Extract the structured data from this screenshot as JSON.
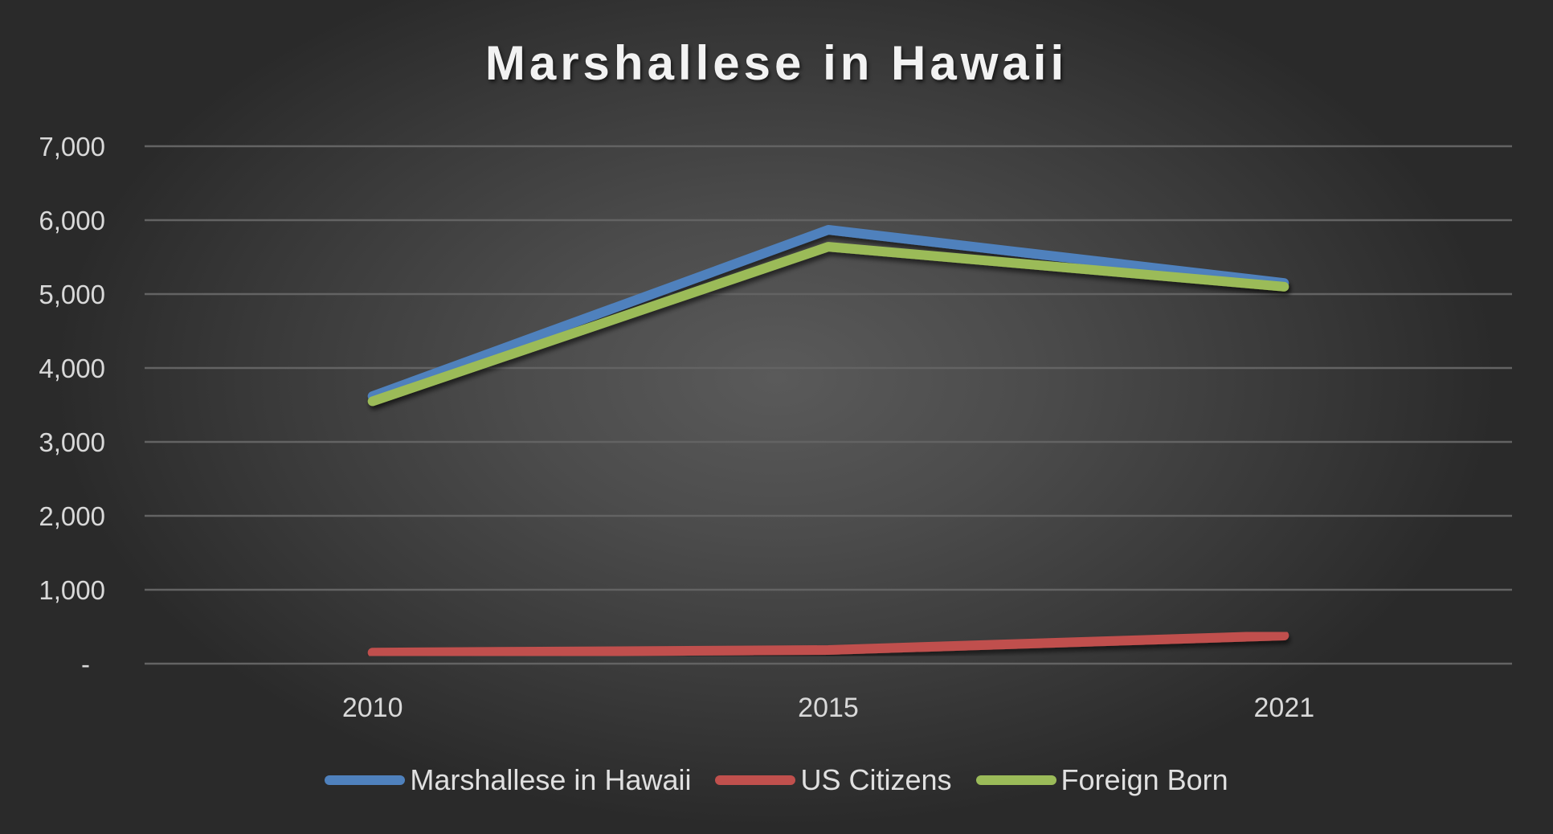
{
  "title": "Marshallese in Hawaii",
  "y_ticks": [
    "7,000",
    "6,000",
    "5,000",
    "4,000",
    "3,000",
    "2,000",
    "1,000",
    "-"
  ],
  "x_ticks": [
    "2010",
    "2015",
    "2021"
  ],
  "legend": [
    {
      "label": "Marshallese in Hawaii",
      "color": "#4f81bd"
    },
    {
      "label": "US Citizens",
      "color": "#c0504d"
    },
    {
      "label": "Foreign Born",
      "color": "#9bbb59"
    }
  ],
  "colors": {
    "grid": "#636363",
    "text": "#d9d9d9",
    "title": "#f2f2f2"
  },
  "chart_data": {
    "type": "line",
    "title": "Marshallese in Hawaii",
    "xlabel": "",
    "ylabel": "",
    "categories": [
      "2010",
      "2015",
      "2021"
    ],
    "series": [
      {
        "name": "Marshallese in Hawaii",
        "color": "#4f81bd",
        "values": [
          3620,
          5870,
          5150
        ]
      },
      {
        "name": "US Citizens",
        "color": "#c0504d",
        "values": [
          150,
          185,
          380
        ]
      },
      {
        "name": "Foreign Born",
        "color": "#9bbb59",
        "values": [
          3550,
          5640,
          5100
        ]
      }
    ],
    "ylim": [
      0,
      7000
    ],
    "y_tick_step": 1000,
    "grid": true,
    "legend_position": "bottom"
  }
}
